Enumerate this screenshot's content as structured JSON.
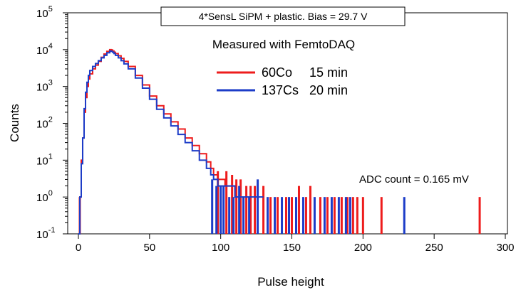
{
  "chart_data": {
    "type": "line",
    "title": "4*SensL SiPM + plastic. Bias = 29.7 V",
    "subtitle": "Measured with FemtoDAQ",
    "xlabel": "Pulse height",
    "ylabel": "Counts",
    "xlim": [
      -2,
      302
    ],
    "ylim": [
      0.1,
      100000
    ],
    "yscale": "log",
    "x_ticks": [
      0,
      50,
      100,
      150,
      200,
      250,
      300
    ],
    "y_ticks": [
      {
        "value": 0.1,
        "base": "10",
        "exp": "-1"
      },
      {
        "value": 1,
        "base": "10",
        "exp": "0"
      },
      {
        "value": 10,
        "base": "10",
        "exp": "1"
      },
      {
        "value": 100,
        "base": "10",
        "exp": "2"
      },
      {
        "value": 1000,
        "base": "10",
        "exp": "3"
      },
      {
        "value": 10000,
        "base": "10",
        "exp": "4"
      },
      {
        "value": 100000,
        "base": "10",
        "exp": "5"
      }
    ],
    "annotation": "ADC count = 0.165 mV",
    "grid": false,
    "legend_position": "top-center",
    "series": [
      {
        "name": "60Co",
        "duration": "15 min",
        "color": "#ee1c1c",
        "x": [
          0,
          1,
          2,
          3,
          4,
          5,
          6,
          7,
          8,
          10,
          12,
          14,
          16,
          18,
          20,
          22,
          23,
          24,
          25,
          26,
          28,
          30,
          32,
          35,
          40,
          45,
          50,
          55,
          60,
          65,
          70,
          75,
          80,
          85,
          90,
          93,
          95,
          98,
          100,
          103,
          106,
          110
        ],
        "values": [
          0.1,
          1,
          10,
          40,
          200,
          500,
          1000,
          1600,
          2200,
          3000,
          3800,
          4800,
          6200,
          7600,
          9000,
          10000,
          9800,
          9200,
          8500,
          7800,
          6800,
          5800,
          4800,
          3500,
          2000,
          1100,
          550,
          300,
          180,
          110,
          70,
          40,
          25,
          15,
          9,
          6,
          4,
          3,
          3,
          2,
          2,
          1
        ],
        "spikes": [
          {
            "x": 1,
            "y": 1
          },
          {
            "x": 98,
            "y": 5
          },
          {
            "x": 104,
            "y": 5
          },
          {
            "x": 108,
            "y": 4
          },
          {
            "x": 111,
            "y": 3
          },
          {
            "x": 114,
            "y": 3
          },
          {
            "x": 118,
            "y": 2
          },
          {
            "x": 121,
            "y": 2
          },
          {
            "x": 124,
            "y": 2
          },
          {
            "x": 130,
            "y": 2
          },
          {
            "x": 135,
            "y": 1
          },
          {
            "x": 140,
            "y": 1
          },
          {
            "x": 146,
            "y": 1
          },
          {
            "x": 150,
            "y": 1
          },
          {
            "x": 155,
            "y": 2
          },
          {
            "x": 160,
            "y": 1
          },
          {
            "x": 163,
            "y": 2
          },
          {
            "x": 170,
            "y": 1
          },
          {
            "x": 175,
            "y": 1
          },
          {
            "x": 180,
            "y": 1
          },
          {
            "x": 185,
            "y": 1
          },
          {
            "x": 189,
            "y": 1
          },
          {
            "x": 193,
            "y": 1
          },
          {
            "x": 196,
            "y": 1
          },
          {
            "x": 200,
            "y": 1
          },
          {
            "x": 213,
            "y": 1
          },
          {
            "x": 282,
            "y": 1
          }
        ]
      },
      {
        "name": "137Cs",
        "duration": "20 min",
        "color": "#1c3cc8",
        "x": [
          0,
          1,
          2,
          3,
          4,
          5,
          6,
          7,
          8,
          10,
          12,
          14,
          16,
          18,
          20,
          22,
          23,
          24,
          25,
          26,
          28,
          30,
          32,
          35,
          40,
          45,
          50,
          55,
          60,
          65,
          70,
          75,
          80,
          85,
          90,
          93,
          95,
          98,
          100,
          105,
          110,
          115,
          120,
          125,
          130
        ],
        "values": [
          0.1,
          1,
          8,
          40,
          250,
          700,
          1300,
          2000,
          2700,
          3500,
          4200,
          5000,
          6000,
          7000,
          8200,
          9200,
          9000,
          8500,
          7800,
          7000,
          6000,
          5000,
          4100,
          3000,
          1700,
          900,
          450,
          240,
          140,
          85,
          50,
          30,
          18,
          10,
          6,
          4,
          3,
          2,
          2,
          2,
          1,
          1,
          1,
          1,
          1
        ],
        "spikes": [
          {
            "x": 94,
            "y": 3
          },
          {
            "x": 97,
            "y": 2
          },
          {
            "x": 100,
            "y": 2
          },
          {
            "x": 102,
            "y": 2
          },
          {
            "x": 106,
            "y": 1
          },
          {
            "x": 109,
            "y": 1
          },
          {
            "x": 113,
            "y": 2
          },
          {
            "x": 116,
            "y": 1
          },
          {
            "x": 120,
            "y": 1
          },
          {
            "x": 126,
            "y": 3
          },
          {
            "x": 133,
            "y": 1
          },
          {
            "x": 138,
            "y": 1
          },
          {
            "x": 143,
            "y": 1
          },
          {
            "x": 148,
            "y": 1
          },
          {
            "x": 153,
            "y": 1
          },
          {
            "x": 158,
            "y": 1
          },
          {
            "x": 166,
            "y": 1
          },
          {
            "x": 173,
            "y": 1
          },
          {
            "x": 178,
            "y": 1
          },
          {
            "x": 183,
            "y": 1
          },
          {
            "x": 188,
            "y": 1
          },
          {
            "x": 191,
            "y": 1
          },
          {
            "x": 229,
            "y": 1
          }
        ]
      }
    ]
  }
}
